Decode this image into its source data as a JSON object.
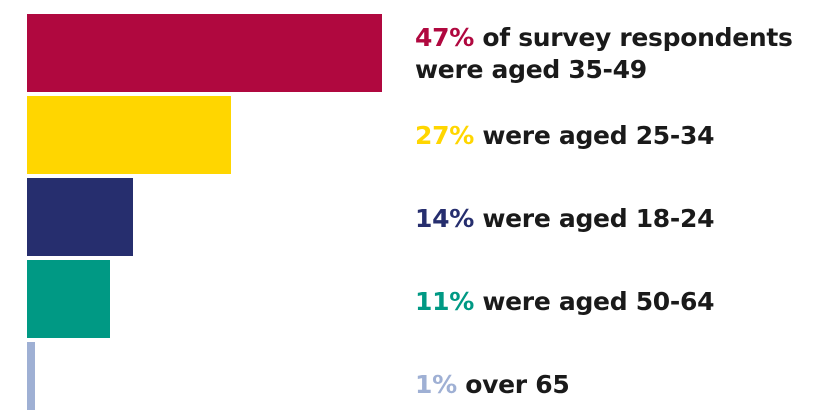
{
  "chart_data": {
    "type": "bar",
    "orientation": "horizontal",
    "categories": [
      "35-49",
      "25-34",
      "18-24",
      "50-64",
      "over 65"
    ],
    "values": [
      47,
      27,
      14,
      11,
      1
    ],
    "xlim": [
      0,
      47
    ],
    "grid": false,
    "colors": [
      "#b0083f",
      "#ffd600",
      "#262e6e",
      "#009984",
      "#9fb0d4"
    ],
    "labels": [
      {
        "pct": "47%",
        "text": " of survey respondents",
        "text2": "were aged 35-49"
      },
      {
        "pct": "27%",
        "text": " were aged 25-34"
      },
      {
        "pct": "14%",
        "text": " were aged 18-24"
      },
      {
        "pct": "11%",
        "text": " were aged 50-64"
      },
      {
        "pct": "1%",
        "text": " over 65"
      }
    ]
  }
}
